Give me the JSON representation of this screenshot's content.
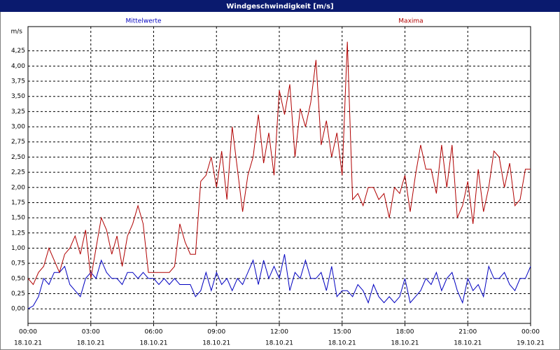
{
  "chart_data": {
    "type": "line",
    "title": "Windgeschwindigkeit [m/s]",
    "y_label": "m/s",
    "x": [
      0,
      0.25,
      0.5,
      0.75,
      1,
      1.25,
      1.5,
      1.75,
      2,
      2.25,
      2.5,
      2.75,
      3,
      3.25,
      3.5,
      3.75,
      4,
      4.25,
      4.5,
      4.75,
      5,
      5.25,
      5.5,
      5.75,
      6,
      6.25,
      6.5,
      6.75,
      7,
      7.25,
      7.5,
      7.75,
      8,
      8.25,
      8.5,
      8.75,
      9,
      9.25,
      9.5,
      9.75,
      10,
      10.25,
      10.5,
      10.75,
      11,
      11.25,
      11.5,
      11.75,
      12,
      12.25,
      12.5,
      12.75,
      13,
      13.25,
      13.5,
      13.75,
      14,
      14.25,
      14.5,
      14.75,
      15,
      15.25,
      15.5,
      15.75,
      16,
      16.25,
      16.5,
      16.75,
      17,
      17.25,
      17.5,
      17.75,
      18,
      18.25,
      18.5,
      18.75,
      19,
      19.25,
      19.5,
      19.75,
      20,
      20.25,
      20.5,
      20.75,
      21,
      21.25,
      21.5,
      21.75,
      22,
      22.25,
      22.5,
      22.75,
      23,
      23.25,
      23.5,
      23.75,
      24
    ],
    "series": [
      {
        "name": "Mittelwerte",
        "color": "#0000c0",
        "values": [
          0.0,
          0.05,
          0.2,
          0.5,
          0.4,
          0.6,
          0.6,
          0.7,
          0.4,
          0.3,
          0.2,
          0.5,
          0.6,
          0.5,
          0.8,
          0.6,
          0.5,
          0.5,
          0.4,
          0.6,
          0.6,
          0.5,
          0.6,
          0.5,
          0.5,
          0.4,
          0.5,
          0.4,
          0.5,
          0.4,
          0.4,
          0.4,
          0.2,
          0.3,
          0.6,
          0.3,
          0.6,
          0.4,
          0.5,
          0.3,
          0.5,
          0.4,
          0.6,
          0.8,
          0.4,
          0.8,
          0.5,
          0.7,
          0.5,
          0.9,
          0.3,
          0.6,
          0.5,
          0.8,
          0.5,
          0.5,
          0.6,
          0.3,
          0.7,
          0.2,
          0.3,
          0.3,
          0.2,
          0.4,
          0.3,
          0.1,
          0.4,
          0.2,
          0.1,
          0.2,
          0.1,
          0.2,
          0.5,
          0.1,
          0.2,
          0.3,
          0.5,
          0.4,
          0.6,
          0.3,
          0.5,
          0.6,
          0.3,
          0.1,
          0.5,
          0.3,
          0.4,
          0.2,
          0.7,
          0.5,
          0.5,
          0.6,
          0.4,
          0.3,
          0.5,
          0.5,
          0.7
        ]
      },
      {
        "name": "Maxima",
        "color": "#b00000",
        "values": [
          0.5,
          0.4,
          0.6,
          0.7,
          1.0,
          0.8,
          0.6,
          0.9,
          1.0,
          1.2,
          0.9,
          1.3,
          0.5,
          1.0,
          1.5,
          1.3,
          0.9,
          1.2,
          0.7,
          1.2,
          1.4,
          1.7,
          1.4,
          0.6,
          0.6,
          0.6,
          0.6,
          0.6,
          0.7,
          1.4,
          1.1,
          0.9,
          0.9,
          2.1,
          2.2,
          2.5,
          2.0,
          2.6,
          1.8,
          3.0,
          2.3,
          1.6,
          2.2,
          2.5,
          3.2,
          2.4,
          2.9,
          2.2,
          3.6,
          3.2,
          3.7,
          2.5,
          3.3,
          3.0,
          3.4,
          4.1,
          2.7,
          3.1,
          2.5,
          2.9,
          2.2,
          4.4,
          1.8,
          1.9,
          1.7,
          2.0,
          2.0,
          1.8,
          1.9,
          1.5,
          2.0,
          1.9,
          2.2,
          1.6,
          2.2,
          2.7,
          2.3,
          2.3,
          1.9,
          2.7,
          2.0,
          2.7,
          1.5,
          1.7,
          2.1,
          1.4,
          2.3,
          1.6,
          2.0,
          2.6,
          2.5,
          2.0,
          2.4,
          1.7,
          1.8,
          2.3,
          2.3
        ]
      }
    ],
    "xlim": [
      0,
      24
    ],
    "xticks": [
      {
        "value": 0,
        "label": "00:00"
      },
      {
        "value": 3,
        "label": "03:00"
      },
      {
        "value": 6,
        "label": "06:00"
      },
      {
        "value": 9,
        "label": "09:00"
      },
      {
        "value": 12,
        "label": "12:00"
      },
      {
        "value": 15,
        "label": "15:00"
      },
      {
        "value": 18,
        "label": "18:00"
      },
      {
        "value": 21,
        "label": "21:00"
      },
      {
        "value": 24,
        "label": "00:00"
      }
    ],
    "xtick_dates": [
      "18.10.21",
      "18.10.21",
      "18.10.21",
      "18.10.21",
      "18.10.21",
      "18.10.21",
      "18.10.21",
      "18.10.21",
      "19.10.21"
    ],
    "ylim": [
      -0.24,
      4.65
    ],
    "yticks": [
      {
        "value": 0,
        "label": "0,00"
      },
      {
        "value": 0.25,
        "label": "0,25"
      },
      {
        "value": 0.5,
        "label": "0,50"
      },
      {
        "value": 0.75,
        "label": "0,75"
      },
      {
        "value": 1,
        "label": "1,00"
      },
      {
        "value": 1.25,
        "label": "1,25"
      },
      {
        "value": 1.5,
        "label": "1,50"
      },
      {
        "value": 1.75,
        "label": "1,75"
      },
      {
        "value": 2,
        "label": "2,00"
      },
      {
        "value": 2.25,
        "label": "2,25"
      },
      {
        "value": 2.5,
        "label": "2,50"
      },
      {
        "value": 2.75,
        "label": "2,75"
      },
      {
        "value": 3,
        "label": "3,00"
      },
      {
        "value": 3.25,
        "label": "3,25"
      },
      {
        "value": 3.5,
        "label": "3,50"
      },
      {
        "value": 3.75,
        "label": "3,75"
      },
      {
        "value": 4,
        "label": "4,00"
      },
      {
        "value": 4.25,
        "label": "4,25"
      }
    ],
    "grid": true
  }
}
